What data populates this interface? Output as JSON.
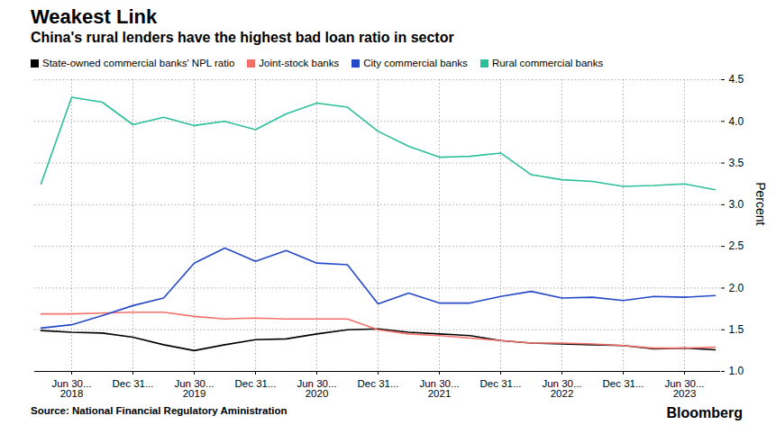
{
  "chart_data": {
    "type": "line",
    "title": "Weakest Link",
    "subtitle": "China's rural lenders have the highest bad loan ratio in sector",
    "source": "Source: National Financial Regulatory Aministration",
    "credit": "Bloomberg",
    "y_label": "Percent",
    "categories": [
      null,
      "Jun 30...\n2018",
      null,
      "Dec 31...",
      null,
      "Jun 30...\n2019",
      null,
      "Dec 31...",
      null,
      "Jun 30...\n2020",
      null,
      "Dec 31...",
      null,
      "Jun 30...\n2021",
      null,
      "Dec 31...",
      null,
      "Jun 30...\n2022",
      null,
      "Dec 31...",
      null,
      "Jun 30...\n2023",
      null
    ],
    "series": [
      {
        "name": "State-owned commercial banks' NPL ratio",
        "color": "#000000",
        "values": [
          1.49,
          1.47,
          1.46,
          1.41,
          1.32,
          1.25,
          1.32,
          1.38,
          1.39,
          1.45,
          1.5,
          1.51,
          1.47,
          1.45,
          1.43,
          1.37,
          1.34,
          1.33,
          1.32,
          1.31,
          1.27,
          1.28,
          1.26
        ]
      },
      {
        "name": "Joint-stock banks",
        "color": "#f2726b",
        "values": [
          1.69,
          1.69,
          1.7,
          1.71,
          1.71,
          1.66,
          1.63,
          1.64,
          1.63,
          1.63,
          1.63,
          1.5,
          1.45,
          1.43,
          1.4,
          1.37,
          1.34,
          1.34,
          1.33,
          1.31,
          1.28,
          1.28,
          1.29
        ]
      },
      {
        "name": "City commercial banks",
        "color": "#2448c8",
        "values": [
          1.52,
          1.56,
          1.67,
          1.79,
          1.88,
          2.3,
          2.48,
          2.32,
          2.45,
          2.3,
          2.28,
          1.81,
          1.94,
          1.82,
          1.82,
          1.9,
          1.96,
          1.88,
          1.89,
          1.85,
          1.9,
          1.89,
          1.91
        ]
      },
      {
        "name": "Rural commercial banks",
        "color": "#2bbf9a",
        "values": [
          3.25,
          4.29,
          4.23,
          3.96,
          4.05,
          3.95,
          4.0,
          3.9,
          4.09,
          4.22,
          4.17,
          3.88,
          3.7,
          3.57,
          3.58,
          3.62,
          3.36,
          3.3,
          3.28,
          3.22,
          3.23,
          3.25,
          3.18
        ]
      }
    ],
    "ylim": [
      1,
      4.5
    ],
    "yticks": [
      {
        "value": 1,
        "label": "1.0"
      },
      1.5,
      {
        "value": 2,
        "label": "2.0"
      },
      2.5,
      {
        "value": 3,
        "label": "3.0"
      },
      3.5,
      {
        "value": 4,
        "label": "4.0"
      },
      4.5
    ],
    "grid": true,
    "legend": "top-left"
  }
}
